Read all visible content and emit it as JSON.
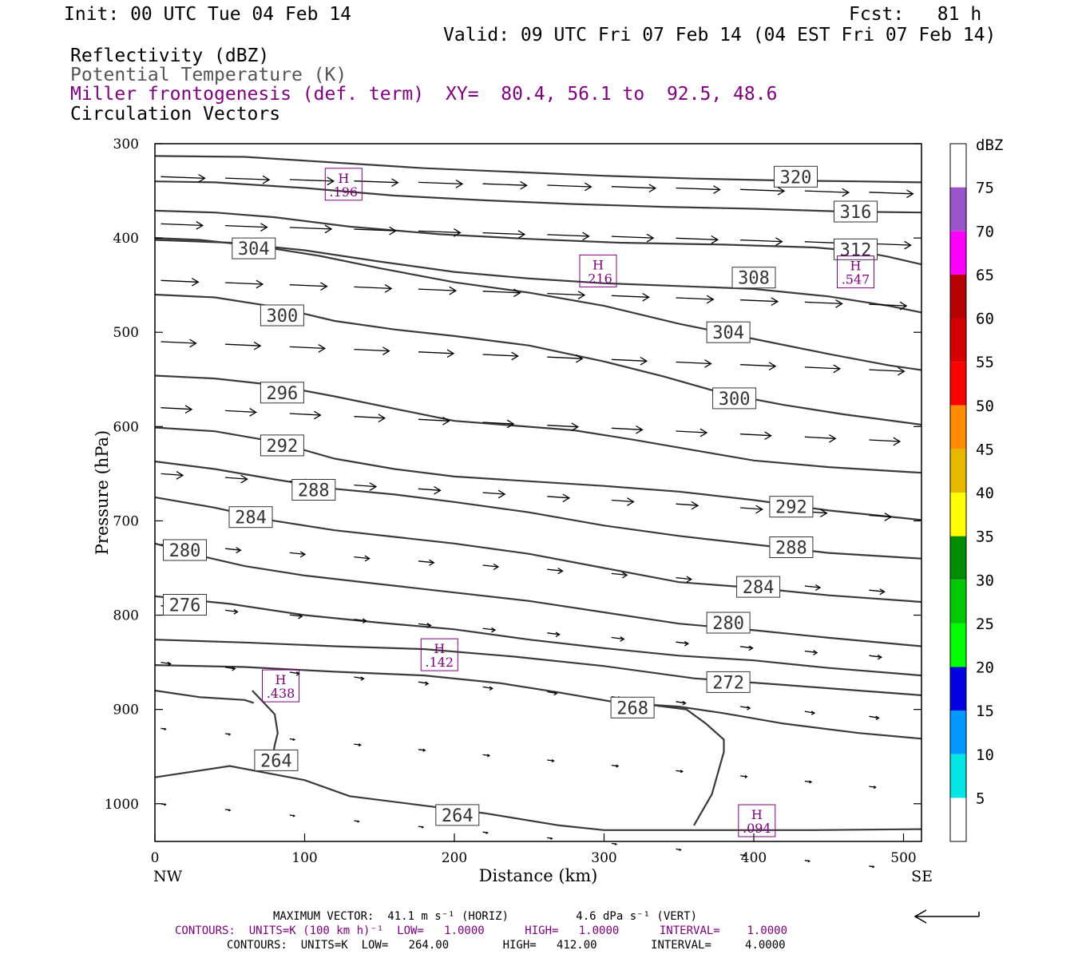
{
  "header": {
    "init": "Init: 00 UTC Tue 04 Feb 14",
    "fcst": "Fcst:   81 h",
    "valid": "Valid: 09 UTC Fri 07 Feb 14 (04 EST Fri 07 Feb 14)",
    "field1": "Reflectivity (dBZ)",
    "field2": "Potential Temperature (K)",
    "field3": "Miller frontogenesis (def. term)",
    "xy": "XY=  80.4, 56.1 to  92.5, 48.6",
    "field4": "Circulation Vectors"
  },
  "colors": {
    "theta_contour": "#3a3a3a",
    "frontogenesis": "#800080",
    "vectors": "#000000"
  },
  "chart_data": {
    "type": "cross-section",
    "xlabel": "Distance (km)",
    "ylabel": "Pressure (hPa)",
    "xlim": [
      0,
      512
    ],
    "ylim": [
      300,
      1030
    ],
    "x_ticks": [
      0,
      100,
      200,
      300,
      400,
      500
    ],
    "y_ticks": [
      300,
      400,
      500,
      600,
      700,
      800,
      900,
      1000
    ],
    "x_end_labels": [
      "NW",
      "SE"
    ],
    "colorbar": {
      "title": "dBZ",
      "levels": [
        "5",
        "10",
        "15",
        "20",
        "25",
        "30",
        "35",
        "40",
        "45",
        "50",
        "55",
        "60",
        "65",
        "70",
        "75"
      ],
      "colors": [
        "#ffffff",
        "#00e5e5",
        "#0099ff",
        "#0000e0",
        "#00ff00",
        "#00c800",
        "#008c00",
        "#ffff00",
        "#e6b800",
        "#ff8c00",
        "#ff0000",
        "#d40000",
        "#b40000",
        "#ff00ff",
        "#9955cc",
        "#ffffff"
      ]
    },
    "theta_contours": [
      {
        "level": 320,
        "label": "320",
        "label_at": [
          428,
          335
        ],
        "points": [
          [
            0,
            313
          ],
          [
            60,
            314
          ],
          [
            120,
            320
          ],
          [
            180,
            326
          ],
          [
            240,
            330
          ],
          [
            300,
            334
          ],
          [
            360,
            337
          ],
          [
            420,
            339
          ],
          [
            470,
            340
          ],
          [
            512,
            341
          ]
        ]
      },
      {
        "level": 316,
        "label": "316",
        "label_at": [
          468,
          372
        ],
        "points": [
          [
            0,
            340
          ],
          [
            40,
            341
          ],
          [
            100,
            347
          ],
          [
            160,
            355
          ],
          [
            220,
            360
          ],
          [
            280,
            364
          ],
          [
            340,
            367
          ],
          [
            400,
            369
          ],
          [
            460,
            372
          ],
          [
            512,
            373
          ]
        ]
      },
      {
        "level": 312,
        "label": "312",
        "label_at": [
          468,
          412
        ],
        "points": [
          [
            0,
            371
          ],
          [
            40,
            373
          ],
          [
            80,
            378
          ],
          [
            130,
            388
          ],
          [
            190,
            396
          ],
          [
            250,
            401
          ],
          [
            310,
            405
          ],
          [
            380,
            407
          ],
          [
            440,
            410
          ],
          [
            470,
            414
          ],
          [
            490,
            420
          ],
          [
            512,
            428
          ]
        ]
      },
      {
        "level": 308,
        "label": "308",
        "label_at": [
          400,
          442
        ],
        "points": [
          [
            0,
            402
          ],
          [
            50,
            405
          ],
          [
            100,
            413
          ],
          [
            150,
            425
          ],
          [
            200,
            436
          ],
          [
            250,
            443
          ],
          [
            300,
            448
          ],
          [
            350,
            451
          ],
          [
            400,
            454
          ],
          [
            450,
            462
          ],
          [
            490,
            472
          ],
          [
            512,
            479
          ]
        ]
      },
      {
        "level": 304,
        "label": "304",
        "label_at": [
          66,
          411
        ],
        "points": [
          [
            0,
            400
          ],
          [
            30,
            402
          ],
          [
            70,
            409
          ],
          [
            110,
            419
          ],
          [
            150,
            432
          ],
          [
            200,
            447
          ],
          [
            250,
            458
          ],
          [
            300,
            472
          ],
          [
            350,
            491
          ],
          [
            400,
            507
          ],
          [
            450,
            523
          ],
          [
            490,
            535
          ],
          [
            512,
            540
          ]
        ]
      },
      {
        "level": 304,
        "label": "304",
        "label_at": [
          383,
          500
        ],
        "points": []
      },
      {
        "level": 300,
        "label": "300",
        "label_at": [
          85,
          482
        ],
        "points": [
          [
            0,
            460
          ],
          [
            40,
            463
          ],
          [
            80,
            473
          ],
          [
            120,
            488
          ],
          [
            160,
            497
          ],
          [
            200,
            504
          ],
          [
            250,
            514
          ],
          [
            300,
            531
          ],
          [
            340,
            547
          ],
          [
            380,
            565
          ],
          [
            420,
            577
          ],
          [
            460,
            587
          ],
          [
            512,
            598
          ]
        ]
      },
      {
        "level": 300,
        "label": "300",
        "label_at": [
          387,
          570
        ],
        "points": []
      },
      {
        "level": 296,
        "label": "296",
        "label_at": [
          85,
          564
        ],
        "points": [
          [
            0,
            546
          ],
          [
            40,
            549
          ],
          [
            80,
            556
          ],
          [
            120,
            568
          ],
          [
            160,
            581
          ],
          [
            200,
            594
          ],
          [
            240,
            599
          ],
          [
            280,
            604
          ],
          [
            320,
            614
          ],
          [
            360,
            625
          ],
          [
            400,
            636
          ],
          [
            450,
            643
          ],
          [
            512,
            649
          ]
        ]
      },
      {
        "level": 292,
        "label": "292",
        "label_at": [
          85,
          620
        ],
        "points": [
          [
            0,
            601
          ],
          [
            40,
            605
          ],
          [
            80,
            616
          ],
          [
            120,
            634
          ],
          [
            160,
            645
          ],
          [
            200,
            653
          ],
          [
            250,
            658
          ],
          [
            300,
            663
          ],
          [
            350,
            669
          ],
          [
            400,
            678
          ],
          [
            450,
            689
          ],
          [
            512,
            699
          ]
        ]
      },
      {
        "level": 292,
        "label": "292",
        "label_at": [
          425,
          685
        ],
        "points": []
      },
      {
        "level": 288,
        "label": "288",
        "label_at": [
          106,
          667
        ],
        "points": [
          [
            0,
            637
          ],
          [
            40,
            645
          ],
          [
            80,
            656
          ],
          [
            120,
            666
          ],
          [
            160,
            672
          ],
          [
            200,
            680
          ],
          [
            250,
            691
          ],
          [
            300,
            705
          ],
          [
            350,
            716
          ],
          [
            400,
            725
          ],
          [
            450,
            734
          ],
          [
            512,
            740
          ]
        ]
      },
      {
        "level": 288,
        "label": "288",
        "label_at": [
          425,
          728
        ],
        "points": []
      },
      {
        "level": 284,
        "label": "284",
        "label_at": [
          64,
          696
        ],
        "points": [
          [
            0,
            675
          ],
          [
            40,
            686
          ],
          [
            80,
            700
          ],
          [
            120,
            710
          ],
          [
            160,
            717
          ],
          [
            200,
            724
          ],
          [
            250,
            735
          ],
          [
            300,
            750
          ],
          [
            350,
            765
          ],
          [
            400,
            771
          ],
          [
            450,
            779
          ],
          [
            512,
            786
          ]
        ]
      },
      {
        "level": 284,
        "label": "284",
        "label_at": [
          403,
          770
        ],
        "points": []
      },
      {
        "level": 280,
        "label": "280",
        "label_at": [
          20,
          731
        ],
        "points": [
          [
            0,
            724
          ],
          [
            30,
            737
          ],
          [
            60,
            748
          ],
          [
            100,
            758
          ],
          [
            150,
            767
          ],
          [
            200,
            776
          ],
          [
            250,
            785
          ],
          [
            300,
            797
          ],
          [
            350,
            809
          ],
          [
            400,
            816
          ],
          [
            450,
            824
          ],
          [
            512,
            833
          ]
        ]
      },
      {
        "level": 280,
        "label": "280",
        "label_at": [
          383,
          808
        ],
        "points": []
      },
      {
        "level": 276,
        "label": "276",
        "label_at": [
          20,
          789
        ],
        "points": [
          [
            0,
            780
          ],
          [
            50,
            788
          ],
          [
            100,
            800
          ],
          [
            150,
            808
          ],
          [
            200,
            815
          ],
          [
            250,
            826
          ],
          [
            300,
            835
          ],
          [
            350,
            843
          ],
          [
            400,
            848
          ],
          [
            450,
            856
          ],
          [
            512,
            864
          ]
        ]
      },
      {
        "level": 272,
        "label": "272",
        "label_at": [
          383,
          871
        ],
        "points": [
          [
            0,
            826
          ],
          [
            60,
            829
          ],
          [
            120,
            833
          ],
          [
            180,
            836
          ],
          [
            240,
            844
          ],
          [
            300,
            854
          ],
          [
            360,
            867
          ],
          [
            420,
            874
          ],
          [
            470,
            880
          ],
          [
            512,
            885
          ]
        ]
      },
      {
        "level": 268,
        "label": "268",
        "label_at": [
          319,
          898
        ],
        "points": [
          [
            0,
            853
          ],
          [
            60,
            855
          ],
          [
            120,
            860
          ],
          [
            180,
            864
          ],
          [
            230,
            872
          ],
          [
            270,
            882
          ],
          [
            310,
            893
          ],
          [
            350,
            897
          ],
          [
            380,
            904
          ],
          [
            420,
            915
          ],
          [
            470,
            925
          ],
          [
            512,
            931
          ]
        ]
      },
      {
        "level": 264,
        "label": "264",
        "label_at": [
          81,
          954
        ],
        "points": [
          [
            0,
            972
          ],
          [
            50,
            960
          ],
          [
            100,
            975
          ],
          [
            130,
            992
          ],
          [
            170,
            1000
          ],
          [
            220,
            1010
          ],
          [
            270,
            1023
          ],
          [
            300,
            1028
          ],
          [
            380,
            1028
          ],
          [
            440,
            1028
          ],
          [
            512,
            1027
          ]
        ]
      },
      {
        "level": 264,
        "label": "264",
        "label_at": [
          202,
          1012
        ],
        "points": []
      },
      {
        "level": 264,
        "label": "",
        "label_at": [
          0,
          0
        ],
        "points": [
          [
            360,
            1023
          ],
          [
            372,
            990
          ],
          [
            380,
            945
          ],
          [
            380,
            932
          ],
          [
            368,
            915
          ],
          [
            355,
            900
          ],
          [
            330,
            895
          ]
        ]
      },
      {
        "level": 264,
        "label": "",
        "label_at": [
          0,
          0
        ],
        "points": [
          [
            65,
            880
          ],
          [
            80,
            905
          ],
          [
            82,
            925
          ],
          [
            80,
            938
          ],
          [
            78,
            955
          ]
        ]
      },
      {
        "level": 264,
        "label": "",
        "label_at": [
          0,
          0
        ],
        "points": [
          [
            0,
            880
          ],
          [
            30,
            887
          ],
          [
            60,
            890
          ],
          [
            66,
            893
          ]
        ]
      }
    ],
    "frontogenesis_maxima": [
      {
        "x": 126,
        "p": 343,
        "label": "H",
        "value": ".196"
      },
      {
        "x": 296,
        "p": 435,
        "label": "H",
        "value": ".216"
      },
      {
        "x": 468,
        "p": 436,
        "label": "H",
        "value": ".547"
      },
      {
        "x": 190,
        "p": 842,
        "label": "H",
        "value": ".142"
      },
      {
        "x": 84,
        "p": 875,
        "label": "H",
        "value": ".438"
      },
      {
        "x": 402,
        "p": 1018,
        "label": "H",
        "value": ".094"
      }
    ],
    "footer": {
      "max_vector": "MAXIMUM VECTOR:  41.1 m s⁻¹ (HORIZ)          4.6 dPa s⁻¹ (VERT)",
      "contours_purple": "CONTOURS:  UNITS=K (100 km h)⁻¹  LOW=   1.0000      HIGH=   1.0000      INTERVAL=    1.0000",
      "contours_black": "CONTOURS:  UNITS=K  LOW=   264.00        HIGH=   412.00        INTERVAL=     4.0000"
    }
  }
}
